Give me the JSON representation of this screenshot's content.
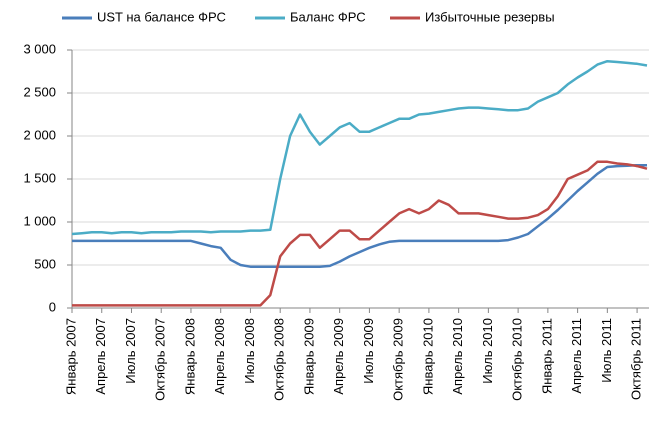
{
  "chart_data": {
    "type": "line",
    "categories": [
      "Январь 2007",
      null,
      null,
      "Апрель 2007",
      null,
      null,
      "Июль 2007",
      null,
      null,
      "Октябрь 2007",
      null,
      null,
      "Январь 2008",
      null,
      null,
      "Апрель 2008",
      null,
      null,
      "Июль 2008",
      null,
      null,
      "Октябрь 2008",
      null,
      null,
      "Январь 2009",
      null,
      null,
      "Апрель 2009",
      null,
      null,
      "Июль 2009",
      null,
      null,
      "Октябрь 2009",
      null,
      null,
      "Январь 2010",
      null,
      null,
      "Апрель 2010",
      null,
      null,
      "Июль 2010",
      null,
      null,
      "Октябрь 2010",
      null,
      null,
      "Январь 2011",
      null,
      null,
      "Апрель 2011",
      null,
      null,
      "Июль 2011",
      null,
      null,
      "Октябрь 2011",
      null
    ],
    "series": [
      {
        "name": "UST на балансе ФРС",
        "color": "#4a7ebb",
        "values": [
          780,
          780,
          780,
          780,
          780,
          780,
          780,
          780,
          780,
          780,
          780,
          780,
          780,
          750,
          720,
          700,
          560,
          500,
          480,
          480,
          480,
          480,
          480,
          480,
          480,
          480,
          490,
          540,
          600,
          650,
          700,
          740,
          770,
          780,
          780,
          780,
          780,
          780,
          780,
          780,
          780,
          780,
          780,
          780,
          790,
          820,
          860,
          950,
          1040,
          1140,
          1250,
          1360,
          1460,
          1560,
          1640,
          1650,
          1655,
          1660,
          1660
        ]
      },
      {
        "name": "Баланс ФРС",
        "color": "#4bacc6",
        "values": [
          860,
          870,
          880,
          880,
          870,
          880,
          880,
          870,
          880,
          880,
          880,
          890,
          890,
          890,
          880,
          890,
          890,
          890,
          900,
          900,
          910,
          1500,
          2000,
          2250,
          2050,
          1900,
          2000,
          2100,
          2150,
          2050,
          2050,
          2100,
          2150,
          2200,
          2200,
          2250,
          2260,
          2280,
          2300,
          2320,
          2330,
          2330,
          2320,
          2310,
          2300,
          2300,
          2320,
          2400,
          2450,
          2500,
          2600,
          2680,
          2750,
          2830,
          2870,
          2860,
          2850,
          2840,
          2820
        ]
      },
      {
        "name": "Избыточные резервы",
        "color": "#be4b48",
        "values": [
          30,
          30,
          30,
          30,
          30,
          30,
          30,
          30,
          30,
          30,
          30,
          30,
          30,
          30,
          30,
          30,
          30,
          30,
          30,
          30,
          150,
          600,
          750,
          850,
          850,
          700,
          800,
          900,
          900,
          800,
          800,
          900,
          1000,
          1100,
          1150,
          1100,
          1150,
          1250,
          1200,
          1100,
          1100,
          1100,
          1080,
          1060,
          1040,
          1040,
          1050,
          1080,
          1150,
          1300,
          1500,
          1550,
          1600,
          1700,
          1700,
          1680,
          1670,
          1650,
          1620
        ]
      }
    ],
    "ylim": [
      0,
      3000
    ],
    "yticks": [
      0,
      500,
      {
        "value": 1000,
        "label": "1 000"
      },
      {
        "value": 1500,
        "label": "1 500"
      },
      {
        "value": 2000,
        "label": "2 000"
      },
      {
        "value": 2500,
        "label": "2 500"
      },
      {
        "value": 3000,
        "label": "3 000"
      }
    ],
    "grid": true
  }
}
